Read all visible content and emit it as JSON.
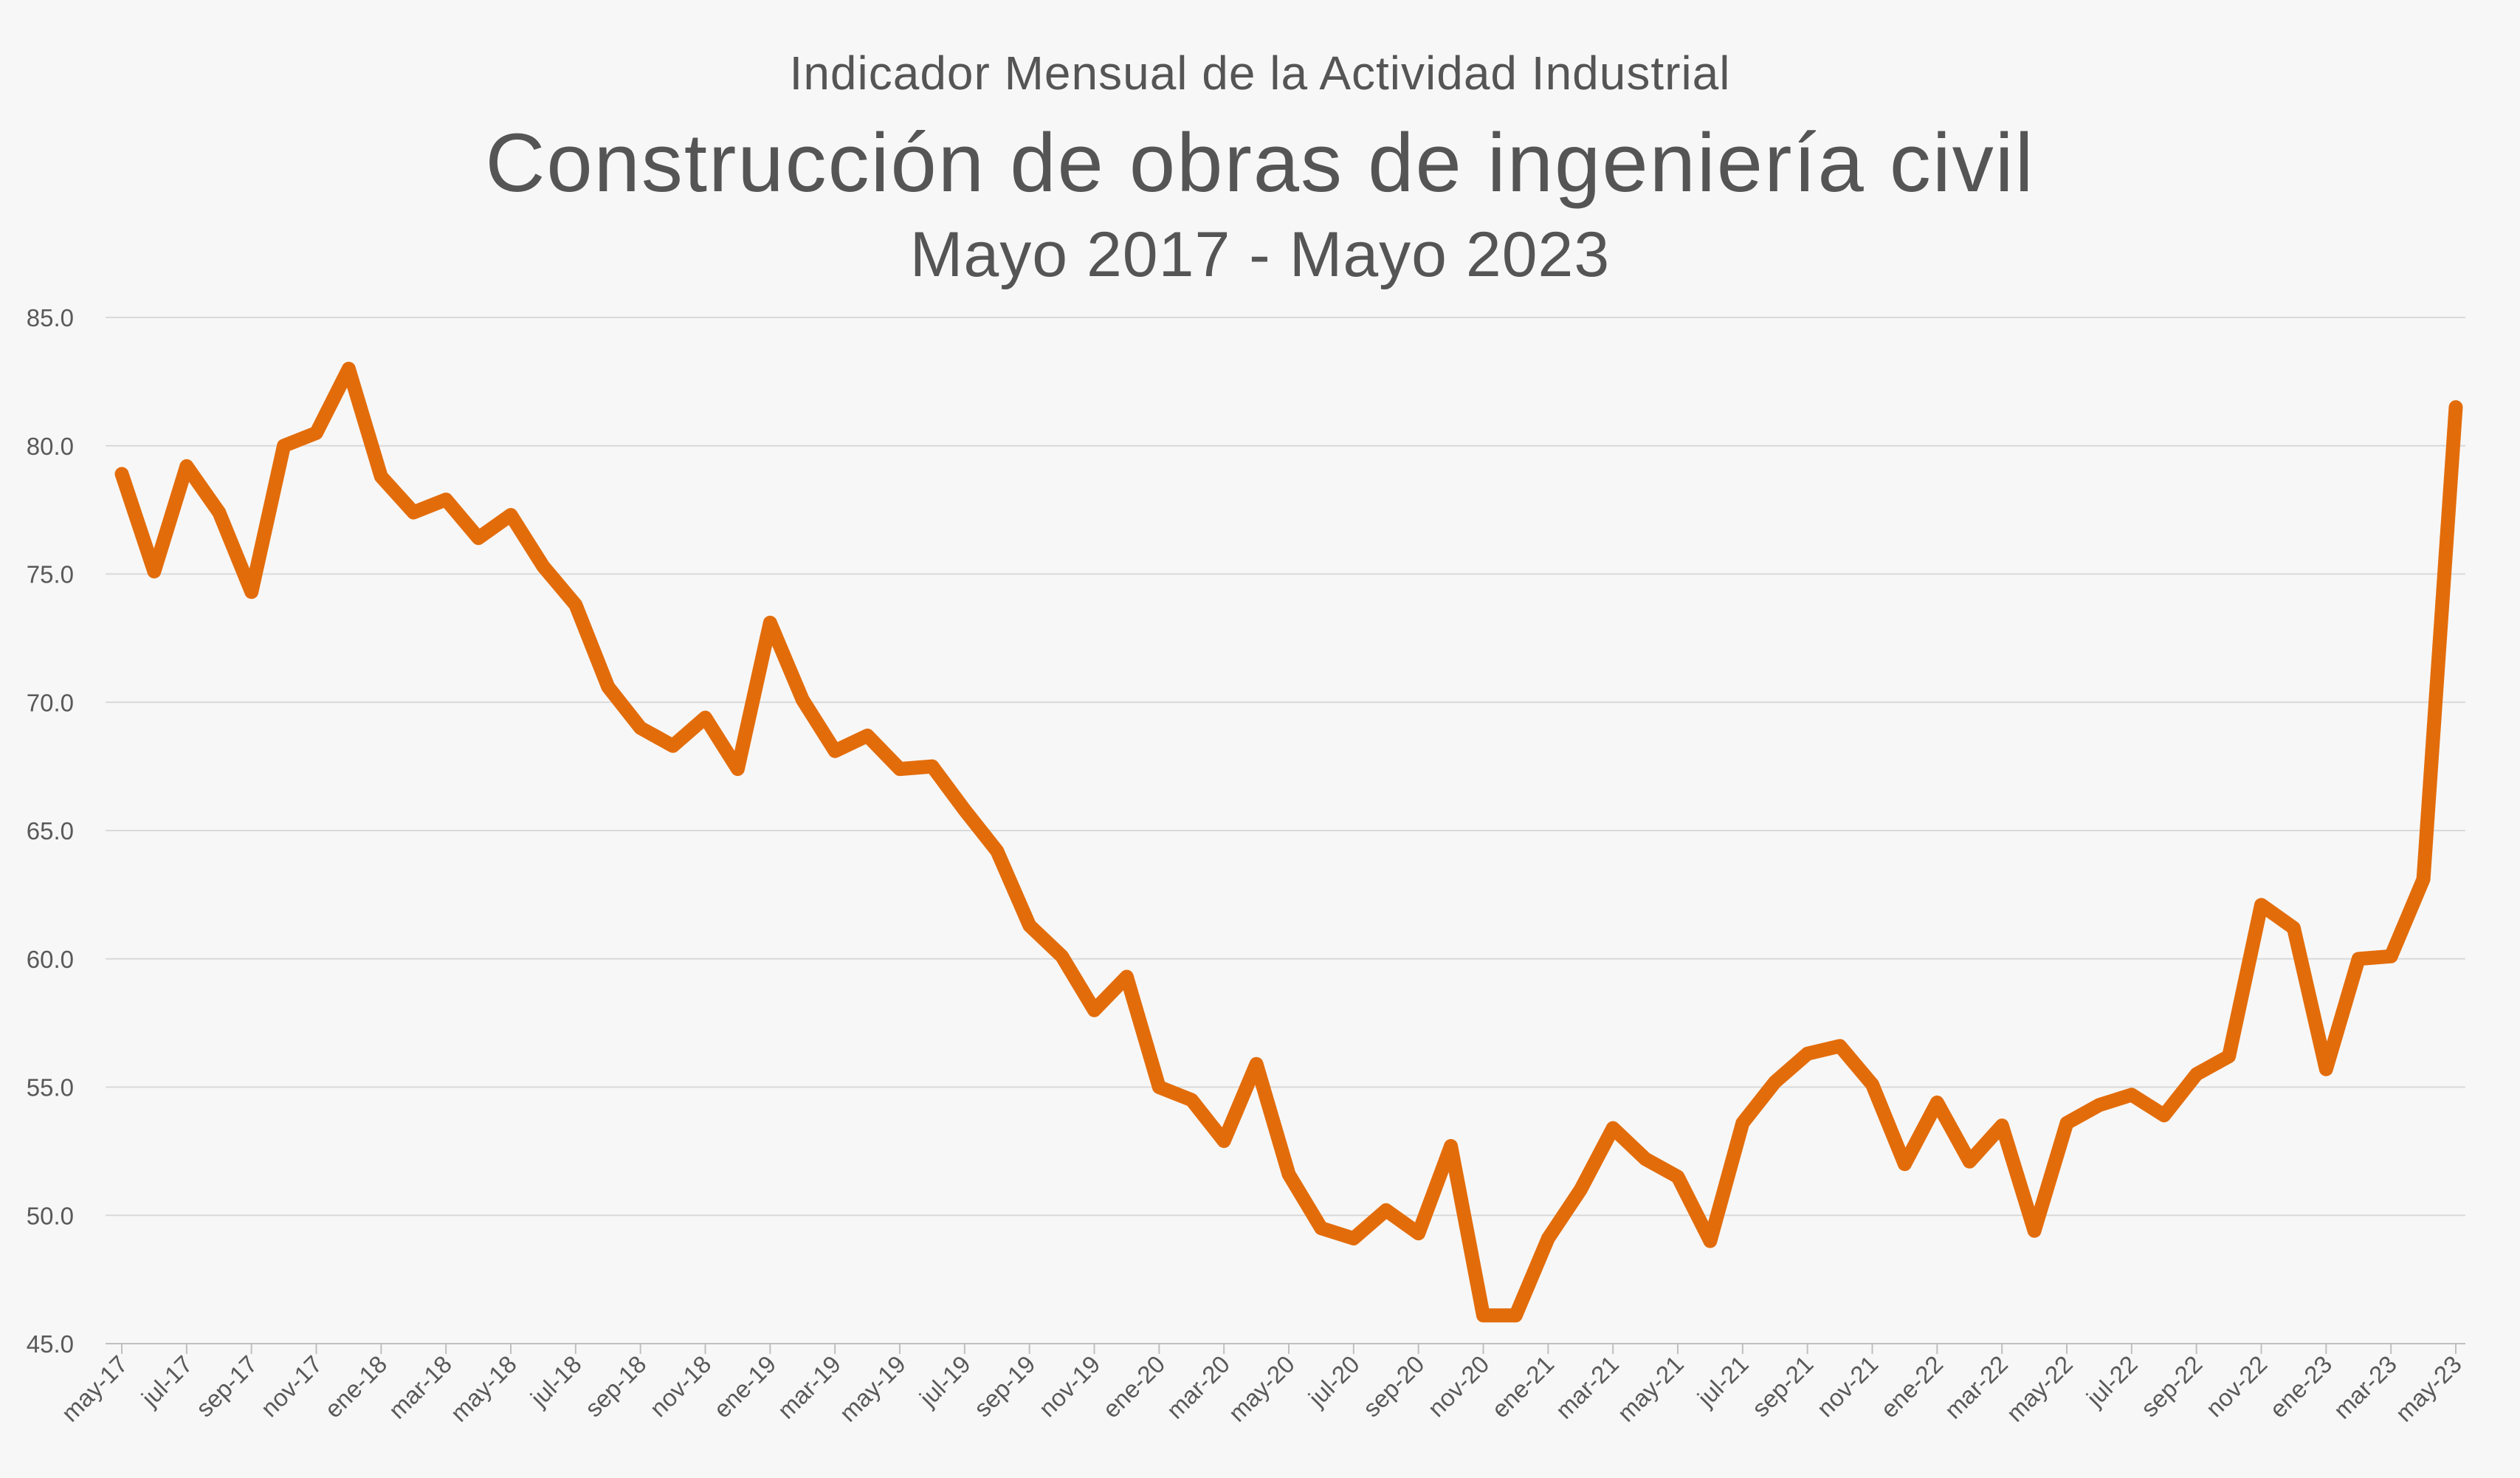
{
  "chart_data": {
    "type": "line",
    "kicker": "Indicador Mensual de la Actividad Industrial",
    "title": "Construcción de obras de ingeniería civil",
    "subtitle": "Mayo 2017 - Mayo 2023",
    "xlabel": "",
    "ylabel": "",
    "ylim": [
      45,
      85
    ],
    "yticks": [
      "45.0",
      "50.0",
      "55.0",
      "60.0",
      "65.0",
      "70.0",
      "75.0",
      "80.0",
      "85.0"
    ],
    "grid": true,
    "line_color": "#e36c0a",
    "x": [
      "may-17",
      "jun-17",
      "jul-17",
      "ago-17",
      "sep-17",
      "oct-17",
      "nov-17",
      "dic-17",
      "ene-18",
      "feb-18",
      "mar-18",
      "abr-18",
      "may-18",
      "jun-18",
      "jul-18",
      "ago-18",
      "sep-18",
      "oct-18",
      "nov-18",
      "dic-18",
      "ene-19",
      "feb-19",
      "mar-19",
      "abr-19",
      "may-19",
      "jun-19",
      "jul-19",
      "ago-19",
      "sep-19",
      "oct-19",
      "nov-19",
      "dic-19",
      "ene-20",
      "feb-20",
      "mar-20",
      "abr-20",
      "may-20",
      "jun-20",
      "jul-20",
      "ago-20",
      "sep-20",
      "oct-20",
      "nov-20",
      "dic-20",
      "ene-21",
      "feb-21",
      "mar-21",
      "abr-21",
      "may-21",
      "jun-21",
      "jul-21",
      "ago-21",
      "sep-21",
      "oct-21",
      "nov-21",
      "dic-21",
      "ene-22",
      "feb-22",
      "mar-22",
      "abr-22",
      "may-22",
      "jun-22",
      "jul-22",
      "ago-22",
      "sep-22",
      "oct-22",
      "nov-22",
      "dic-22",
      "ene-23",
      "feb-23",
      "mar-23",
      "abr-23",
      "may-23"
    ],
    "xtick_labels": [
      "may-17",
      "jul-17",
      "sep-17",
      "nov-17",
      "ene-18",
      "mar-18",
      "may-18",
      "jul-18",
      "sep-18",
      "nov-18",
      "ene-19",
      "mar-19",
      "may-19",
      "jul-19",
      "sep-19",
      "nov-19",
      "ene-20",
      "mar-20",
      "may-20",
      "jul-20",
      "sep-20",
      "nov-20",
      "ene-21",
      "mar-21",
      "may-21",
      "jul-21",
      "sep-21",
      "nov-21",
      "ene-22",
      "mar-22",
      "may-22",
      "jul-22",
      "sep-22",
      "nov-22",
      "ene-23",
      "mar-23",
      "may-23"
    ],
    "series": [
      {
        "values": [
          78.9,
          75.1,
          79.2,
          77.4,
          74.3,
          80.0,
          80.5,
          83.0,
          78.8,
          77.4,
          77.9,
          76.4,
          77.3,
          75.3,
          73.8,
          70.6,
          69.0,
          68.3,
          69.4,
          67.4,
          73.1,
          70.1,
          68.1,
          68.7,
          67.4,
          67.5,
          65.8,
          64.2,
          61.3,
          60.1,
          58.0,
          59.3,
          55.0,
          54.5,
          52.9,
          55.9,
          51.6,
          49.5,
          49.1,
          50.2,
          49.3,
          52.7,
          46.1,
          46.1,
          49.1,
          51.0,
          53.4,
          52.2,
          51.5,
          49.0,
          53.6,
          55.2,
          56.3,
          56.6,
          55.1,
          52.0,
          54.4,
          52.1,
          53.5,
          49.4,
          53.6,
          54.3,
          54.7,
          53.9,
          55.5,
          56.2,
          62.1,
          61.2,
          55.7,
          60.0,
          60.1,
          63.1,
          81.5
        ]
      }
    ]
  }
}
